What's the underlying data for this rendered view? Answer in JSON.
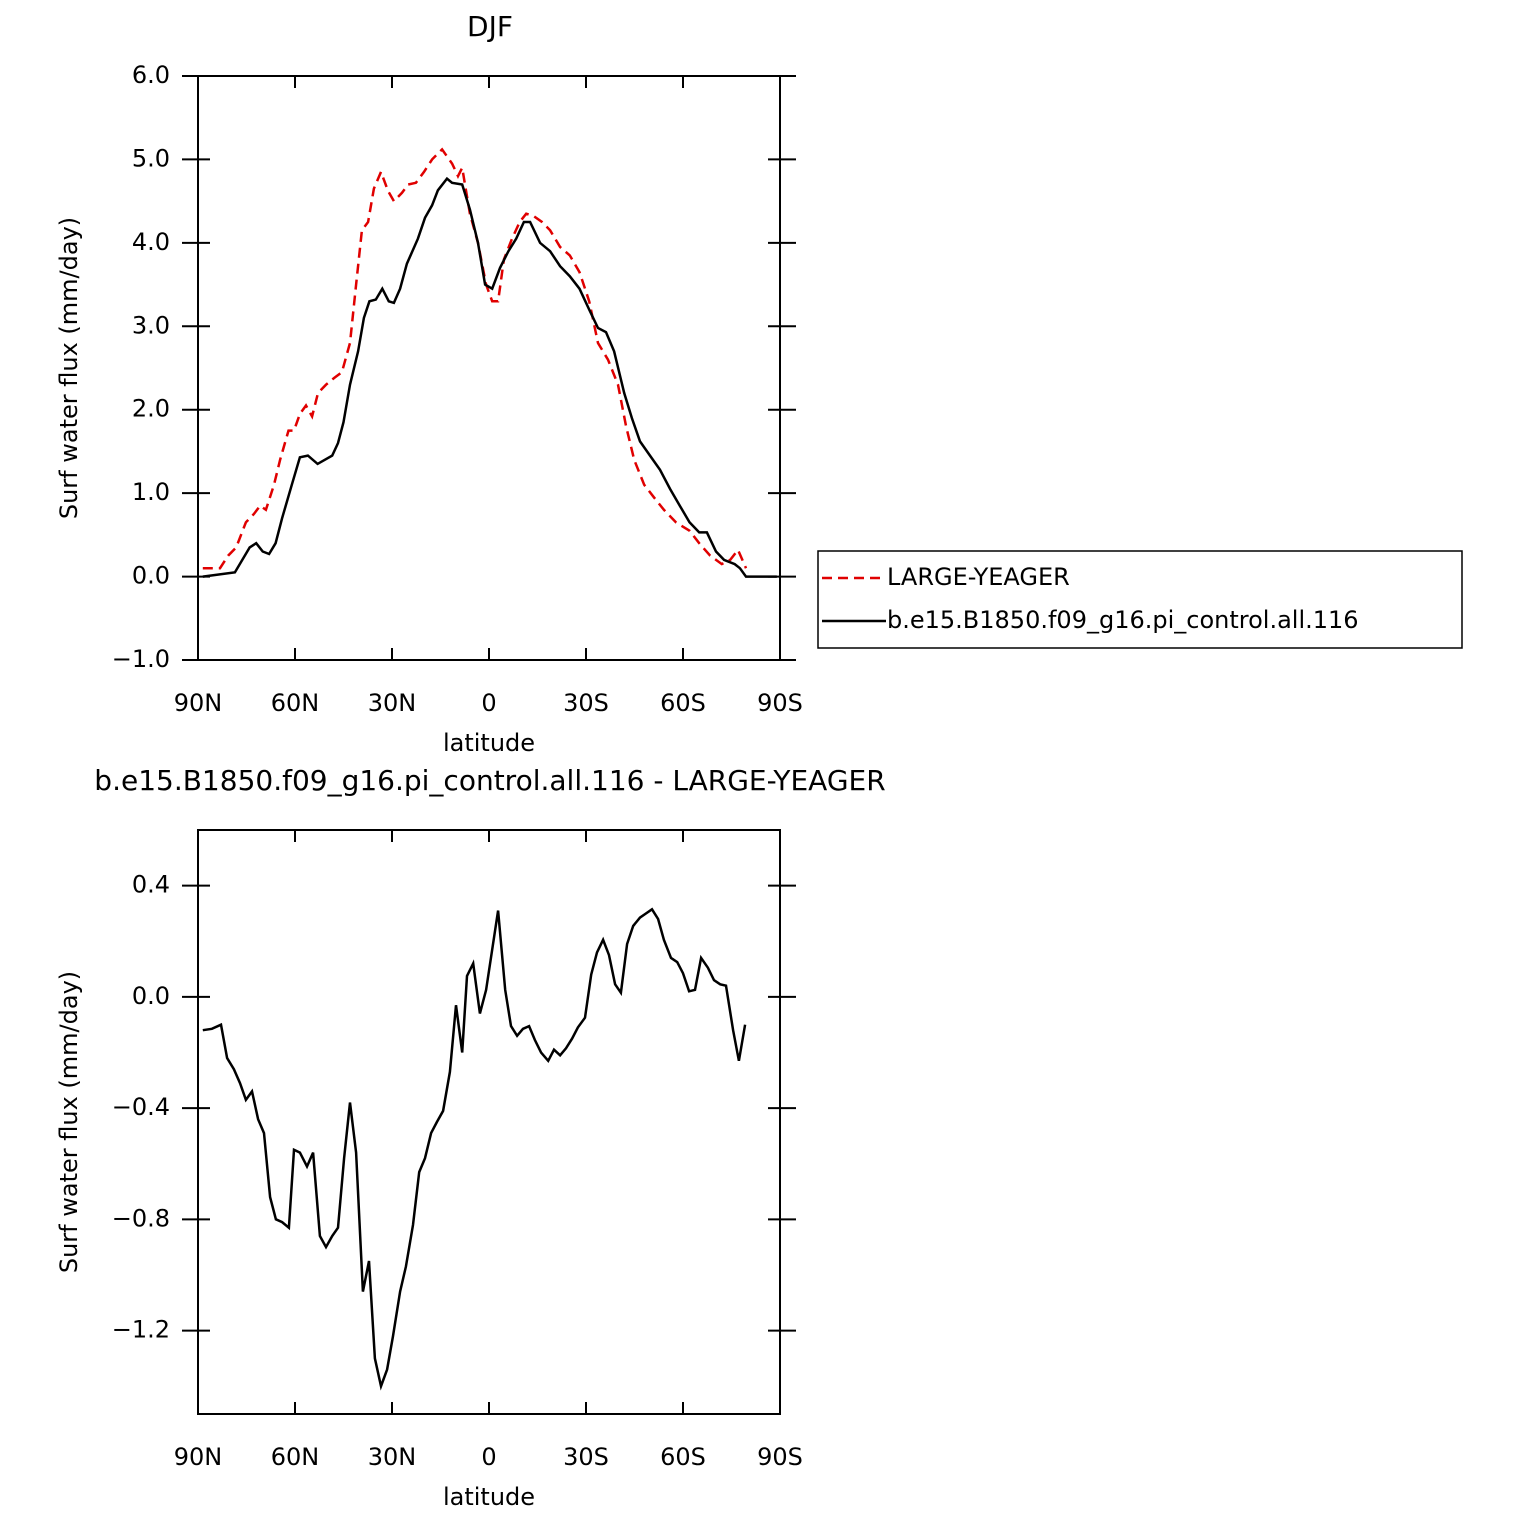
{
  "chart_data": [
    {
      "type": "line",
      "title": "DJF",
      "xlabel": "latitude",
      "ylabel": "Surf water flux (mm/day)",
      "xlim": [
        90,
        -90
      ],
      "xticks": [
        {
          "value": 90,
          "label": "90N"
        },
        {
          "value": 60,
          "label": "60N"
        },
        {
          "value": 30,
          "label": "30N"
        },
        0,
        {
          "value": -30,
          "label": "30S"
        },
        {
          "value": -60,
          "label": "60S"
        },
        {
          "value": -90,
          "label": "90S"
        }
      ],
      "ylim": [
        -1,
        6
      ],
      "yticks": [
        {
          "value": -1,
          "label": "−1.0"
        },
        {
          "value": 0,
          "label": "0.0"
        },
        {
          "value": 1,
          "label": "1.0"
        },
        {
          "value": 2,
          "label": "2.0"
        },
        {
          "value": 3,
          "label": "3.0"
        },
        {
          "value": 4,
          "label": "4.0"
        },
        {
          "value": 5,
          "label": "5.0"
        },
        {
          "value": 6,
          "label": "6.0"
        }
      ],
      "legend": true,
      "series": [
        {
          "name": "LARGE-YEAGER",
          "color": "#e00000",
          "dash": true,
          "x": [
            88.5,
            83.2,
            80.7,
            78.2,
            75.2,
            72.7,
            70.8,
            69,
            66.5,
            64.6,
            62,
            60.3,
            58.5,
            56.6,
            54.7,
            52.9,
            50.4,
            47.9,
            45.5,
            43,
            41.1,
            39.3,
            37.4,
            35.6,
            33.4,
            31.2,
            29.4,
            26.9,
            25,
            22.6,
            20.1,
            17.6,
            14.5,
            11.4,
            9.6,
            8.3,
            5.9,
            3.4,
            0.9,
            -1,
            -2.8,
            -4.6,
            -7.1,
            -9.5,
            -11.5,
            -13.9,
            -16.4,
            -18.9,
            -22,
            -25,
            -28,
            -31,
            -33.7,
            -36.8,
            -39.9,
            -42.4,
            -44.9,
            -48,
            -51,
            -54.1,
            -57.8,
            -62,
            -65,
            -68.4,
            -72,
            -74.6,
            -77,
            -79.5
          ],
          "values": [
            0.1,
            0.1,
            0.25,
            0.35,
            0.65,
            0.75,
            0.85,
            0.8,
            1.1,
            1.4,
            1.75,
            1.75,
            1.95,
            2.05,
            1.92,
            2.2,
            2.3,
            2.38,
            2.45,
            2.8,
            3.5,
            4.15,
            4.25,
            4.65,
            4.85,
            4.62,
            4.5,
            4.6,
            4.7,
            4.72,
            4.85,
            5.0,
            5.12,
            4.95,
            4.8,
            4.9,
            4.35,
            4.0,
            3.5,
            3.3,
            3.3,
            3.8,
            4.05,
            4.25,
            4.35,
            4.32,
            4.25,
            4.15,
            3.95,
            3.85,
            3.65,
            3.3,
            2.8,
            2.6,
            2.3,
            1.8,
            1.4,
            1.1,
            0.95,
            0.8,
            0.65,
            0.55,
            0.4,
            0.25,
            0.15,
            0.2,
            0.32,
            0.1
          ]
        },
        {
          "name": "b.e15.B1850.f09_g16.pi_control.all.116",
          "color": "#000000",
          "dash": false,
          "x": [
            88.5,
            78.6,
            74,
            72,
            70,
            68,
            66,
            64,
            61,
            58.5,
            56,
            53,
            48.5,
            46.7,
            45,
            43,
            40.5,
            38.7,
            37,
            35,
            33,
            31,
            29.4,
            27.5,
            25.4,
            22,
            19.8,
            17.6,
            15.8,
            13,
            11.4,
            8.3,
            5.9,
            3.4,
            1.2,
            -1,
            -3.4,
            -6,
            -8.4,
            -10.8,
            -12.7,
            -15.8,
            -18.9,
            -22,
            -25,
            -28,
            -31,
            -33.7,
            -36.2,
            -38.7,
            -41.8,
            -44.2,
            -46.7,
            -49.8,
            -52.9,
            -56,
            -59,
            -62,
            -65,
            -67.4,
            -70.2,
            -72.7,
            -76,
            -77.6,
            -79.5,
            -89
          ],
          "values": [
            0.0,
            0.05,
            0.35,
            0.4,
            0.3,
            0.27,
            0.4,
            0.7,
            1.1,
            1.43,
            1.45,
            1.35,
            1.45,
            1.6,
            1.85,
            2.3,
            2.7,
            3.1,
            3.3,
            3.32,
            3.45,
            3.3,
            3.28,
            3.45,
            3.75,
            4.05,
            4.3,
            4.45,
            4.63,
            4.77,
            4.72,
            4.7,
            4.4,
            4.0,
            3.5,
            3.45,
            3.7,
            3.9,
            4.05,
            4.25,
            4.25,
            4.0,
            3.9,
            3.72,
            3.6,
            3.45,
            3.2,
            2.98,
            2.93,
            2.7,
            2.2,
            1.9,
            1.62,
            1.45,
            1.28,
            1.05,
            0.85,
            0.65,
            0.53,
            0.53,
            0.3,
            0.2,
            0.15,
            0.1,
            0.0,
            0.0
          ]
        }
      ]
    },
    {
      "type": "line",
      "title": "b.e15.B1850.f09_g16.pi_control.all.116 - LARGE-YEAGER",
      "xlabel": "latitude",
      "ylabel": "Surf water flux (mm/day)",
      "xlim": [
        90,
        -90
      ],
      "xticks": [
        {
          "value": 90,
          "label": "90N"
        },
        {
          "value": 60,
          "label": "60N"
        },
        {
          "value": 30,
          "label": "30N"
        },
        0,
        {
          "value": -30,
          "label": "30S"
        },
        {
          "value": -60,
          "label": "60S"
        },
        {
          "value": -90,
          "label": "90S"
        }
      ],
      "ylim": [
        -1.5,
        0.6
      ],
      "yticks": [
        0.4,
        {
          "value": 0,
          "label": "0.0"
        },
        {
          "value": -0.4,
          "label": "−0.4"
        },
        {
          "value": -0.8,
          "label": "−0.8"
        },
        {
          "value": -1.2,
          "label": "−1.2"
        }
      ],
      "legend": false,
      "series": [
        {
          "color": "#000000",
          "dash": false,
          "x": [
            88.5,
            85.7,
            82.9,
            81,
            78.9,
            77,
            75.2,
            73.3,
            71.4,
            69.6,
            67.7,
            65.9,
            64,
            61.9,
            60.3,
            58.5,
            56.3,
            54.4,
            52.3,
            50.4,
            48.5,
            46.7,
            44.8,
            43,
            41.1,
            39,
            37.1,
            35.3,
            33.4,
            31.5,
            29.7,
            27.5,
            25.7,
            23.5,
            21.6,
            19.8,
            17.9,
            16.1,
            14.2,
            12.1,
            10.2,
            8.3,
            6.8,
            4.9,
            2.8,
            0.9,
            -1,
            -2.8,
            -5,
            -6.8,
            -8.7,
            -10.5,
            -12.4,
            -14.2,
            -16.1,
            -18.3,
            -20.1,
            -22,
            -23.8,
            -25.7,
            -27.5,
            -29.7,
            -31.6,
            -33.4,
            -35.3,
            -37.1,
            -39,
            -40.8,
            -42.7,
            -44.6,
            -46.7,
            -48.6,
            -50.4,
            -52.3,
            -54.1,
            -56.3,
            -58.2,
            -60,
            -61.9,
            -63.7,
            -65.6,
            -67.7,
            -69.6,
            -71.5,
            -73.3,
            -75.5,
            -77.3,
            -79.2
          ],
          "values": [
            -0.12,
            -0.115,
            -0.1,
            -0.22,
            -0.26,
            -0.31,
            -0.37,
            -0.34,
            -0.44,
            -0.49,
            -0.72,
            -0.8,
            -0.81,
            -0.83,
            -0.55,
            -0.56,
            -0.61,
            -0.56,
            -0.86,
            -0.9,
            -0.86,
            -0.83,
            -0.58,
            -0.38,
            -0.56,
            -1.06,
            -0.95,
            -1.3,
            -1.4,
            -1.34,
            -1.22,
            -1.06,
            -0.97,
            -0.82,
            -0.63,
            -0.58,
            -0.49,
            -0.45,
            -0.41,
            -0.27,
            -0.03,
            -0.2,
            0.075,
            0.12,
            -0.06,
            0.025,
            0.17,
            0.31,
            0.025,
            -0.105,
            -0.14,
            -0.115,
            -0.105,
            -0.155,
            -0.2,
            -0.23,
            -0.19,
            -0.21,
            -0.185,
            -0.15,
            -0.11,
            -0.075,
            0.08,
            0.16,
            0.205,
            0.15,
            0.045,
            0.015,
            0.19,
            0.255,
            0.285,
            0.3,
            0.315,
            0.28,
            0.205,
            0.14,
            0.125,
            0.085,
            0.02,
            0.025,
            0.14,
            0.105,
            0.06,
            0.045,
            0.04,
            -0.12,
            -0.23,
            -0.1
          ]
        }
      ]
    }
  ]
}
